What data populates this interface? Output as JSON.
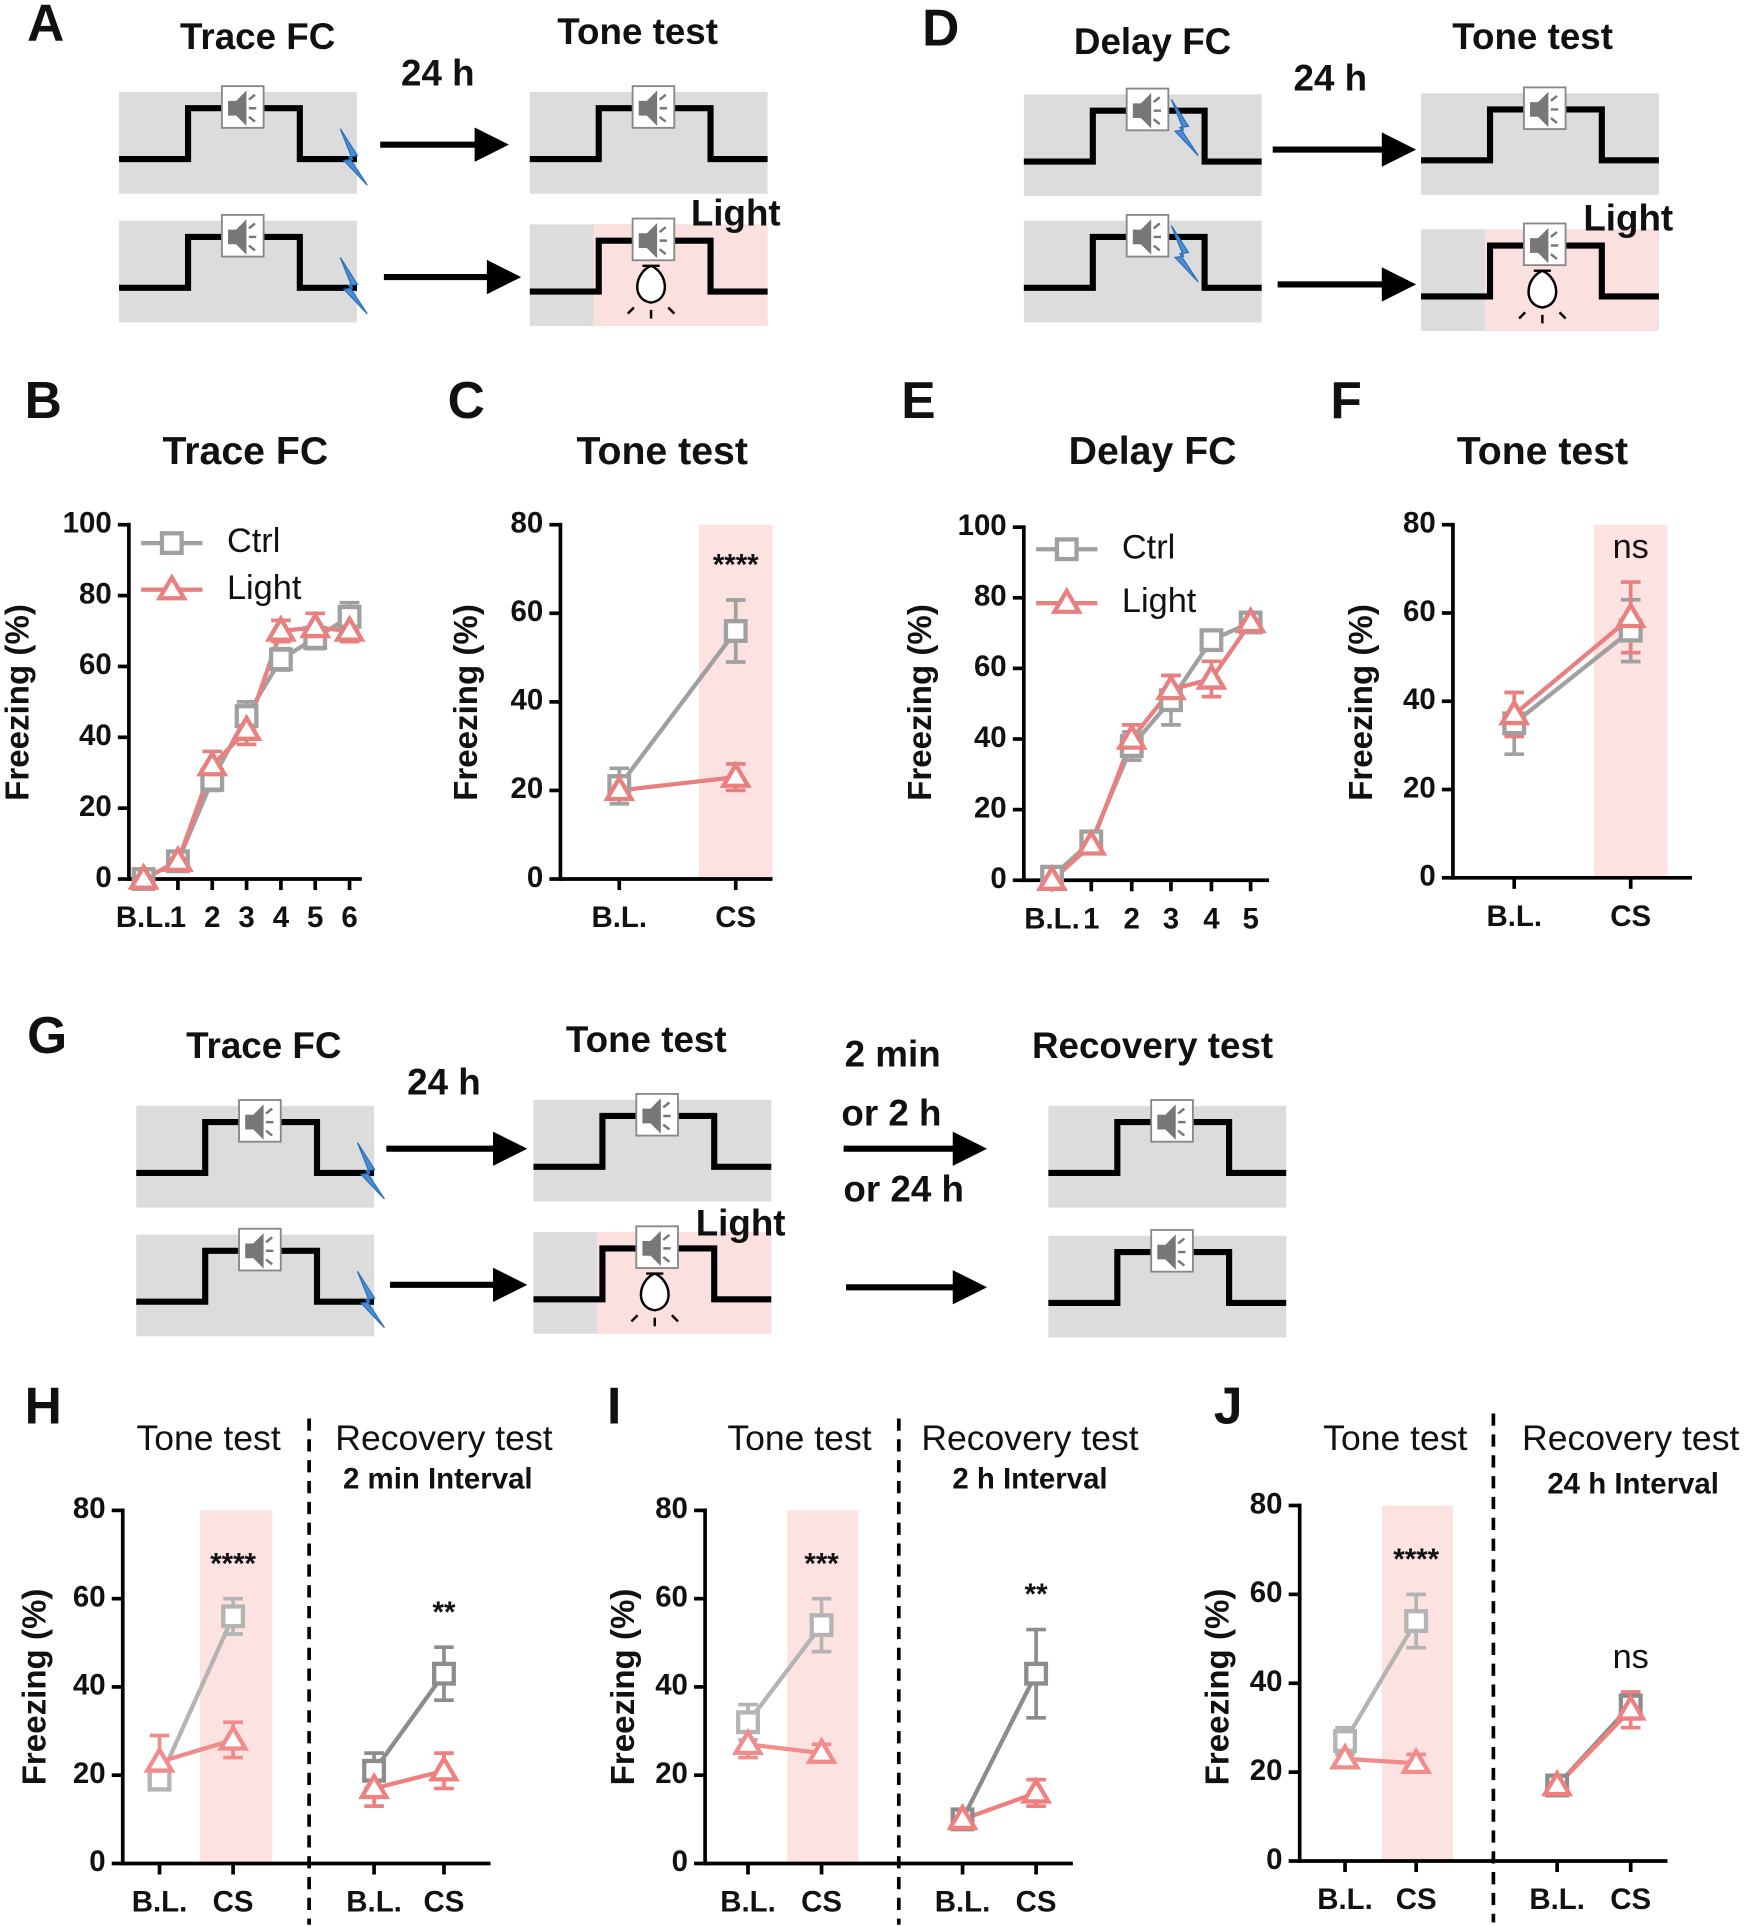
{
  "diagrams": [
    {
      "letter": "A",
      "title": "Trace FC",
      "interval": "24 h",
      "test": "Tone test",
      "light": "Light"
    },
    {
      "letter": "D",
      "title": "Delay FC",
      "interval": "24 h",
      "test": "Tone test",
      "light": "Light"
    },
    {
      "letter": "G",
      "title": "Trace FC",
      "interval": "24 h",
      "test": "Tone test",
      "light": "Light",
      "second_interval": [
        "2 min",
        "or 2 h",
        "or 24 h"
      ],
      "second_test": "Recovery test"
    }
  ],
  "chart_data": [
    {
      "type": "line",
      "panel_label": "B",
      "title": "Trace FC",
      "ylabel": "Freezing (%)",
      "categories": [
        "B.L.",
        "1",
        "2",
        "3",
        "4",
        "5",
        "6"
      ],
      "series": [
        {
          "name": "Ctrl",
          "color": "#a0a0a0",
          "values": [
            0,
            5,
            28,
            46,
            62,
            68,
            74
          ],
          "errors": [
            2,
            2,
            3,
            4,
            3,
            3,
            4
          ]
        },
        {
          "name": "Light",
          "color": "#e88080",
          "values": [
            0,
            5,
            32,
            42,
            70,
            71,
            70
          ],
          "errors": [
            2,
            2,
            4,
            4,
            3,
            4,
            3
          ]
        }
      ],
      "ylim": [
        0,
        100
      ],
      "yticks": [
        0,
        20,
        40,
        60,
        80,
        100
      ],
      "legend": "upper left"
    },
    {
      "type": "line",
      "panel_label": "C",
      "title": "Tone test",
      "ylabel": "Freezing (%)",
      "categories": [
        "B.L.",
        "CS"
      ],
      "series": [
        {
          "name": "Ctrl",
          "color": "#a0a0a0",
          "values": [
            21,
            56
          ],
          "errors": [
            4,
            7
          ]
        },
        {
          "name": "Light",
          "color": "#e88080",
          "values": [
            20,
            23
          ],
          "errors": [
            2,
            3
          ]
        }
      ],
      "ylim": [
        0,
        80
      ],
      "yticks": [
        0,
        20,
        40,
        60,
        80
      ],
      "highlight_index": 1,
      "annotation": "****"
    },
    {
      "type": "line",
      "panel_label": "E",
      "title": "Delay FC",
      "ylabel": "Freezing (%)",
      "categories": [
        "B.L.",
        "1",
        "2",
        "3",
        "4",
        "5"
      ],
      "series": [
        {
          "name": "Ctrl",
          "color": "#a0a0a0",
          "values": [
            1,
            11,
            38,
            51,
            68,
            73
          ],
          "errors": [
            2,
            2,
            4,
            7,
            2,
            2
          ]
        },
        {
          "name": "Light",
          "color": "#e88080",
          "values": [
            0,
            10,
            40,
            54,
            57,
            73
          ],
          "errors": [
            1,
            2,
            4,
            4,
            5,
            2
          ]
        }
      ],
      "ylim": [
        0,
        100
      ],
      "yticks": [
        0,
        20,
        40,
        60,
        80,
        100
      ],
      "legend": "upper left"
    },
    {
      "type": "line",
      "panel_label": "F",
      "title": "Tone test",
      "ylabel": "Freezing (%)",
      "categories": [
        "B.L.",
        "CS"
      ],
      "series": [
        {
          "name": "Ctrl",
          "color": "#a0a0a0",
          "values": [
            35,
            56
          ],
          "errors": [
            7,
            7
          ]
        },
        {
          "name": "Light",
          "color": "#e88080",
          "values": [
            37,
            59
          ],
          "errors": [
            5,
            8
          ]
        }
      ],
      "ylim": [
        0,
        80
      ],
      "yticks": [
        0,
        20,
        40,
        60,
        80
      ],
      "highlight_index": 1,
      "annotation": "ns"
    },
    {
      "type": "line",
      "panel_label": "H",
      "ylabel": "Freezing (%)",
      "ylim": [
        0,
        80
      ],
      "yticks": [
        0,
        20,
        40,
        60,
        80
      ],
      "groups": [
        {
          "title": "Tone test",
          "categories": [
            "B.L.",
            "CS"
          ],
          "highlight_index": 1,
          "annotation": "****",
          "series": [
            {
              "color": "#b4b4b4",
              "values": [
                19,
                56
              ],
              "errors": [
                2,
                4
              ]
            },
            {
              "color": "#f08c8c",
              "values": [
                23,
                28
              ],
              "errors": [
                6,
                4
              ]
            }
          ]
        },
        {
          "title": "Recovery test",
          "subtitle": "2 min Interval",
          "categories": [
            "B.L.",
            "CS"
          ],
          "annotation": "**",
          "series": [
            {
              "color": "#8c8c8c",
              "values": [
                21,
                43
              ],
              "errors": [
                4,
                6
              ]
            },
            {
              "color": "#f08080",
              "values": [
                17,
                21
              ],
              "errors": [
                4,
                4
              ]
            }
          ]
        }
      ]
    },
    {
      "type": "line",
      "panel_label": "I",
      "ylabel": "Freezing (%)",
      "ylim": [
        0,
        80
      ],
      "yticks": [
        0,
        20,
        40,
        60,
        80
      ],
      "groups": [
        {
          "title": "Tone test",
          "categories": [
            "B.L.",
            "CS"
          ],
          "highlight_index": 1,
          "annotation": "***",
          "series": [
            {
              "color": "#b4b4b4",
              "values": [
                32,
                54
              ],
              "errors": [
                4,
                6
              ]
            },
            {
              "color": "#f08c8c",
              "values": [
                27,
                25
              ],
              "errors": [
                3,
                2
              ]
            }
          ]
        },
        {
          "title": "Recovery test",
          "subtitle": "2 h Interval",
          "categories": [
            "B.L.",
            "CS"
          ],
          "annotation": "**",
          "series": [
            {
              "color": "#8c8c8c",
              "values": [
                10,
                43
              ],
              "errors": [
                1,
                10
              ]
            },
            {
              "color": "#f08080",
              "values": [
                10,
                16
              ],
              "errors": [
                1,
                3
              ]
            }
          ]
        }
      ]
    },
    {
      "type": "line",
      "panel_label": "J",
      "ylabel": "Freezing (%)",
      "ylim": [
        0,
        80
      ],
      "yticks": [
        0,
        20,
        40,
        60,
        80
      ],
      "groups": [
        {
          "title": "Tone test",
          "categories": [
            "B.L.",
            "CS"
          ],
          "highlight_index": 1,
          "annotation": "****",
          "series": [
            {
              "color": "#b4b4b4",
              "values": [
                27,
                54
              ],
              "errors": [
                3,
                6
              ]
            },
            {
              "color": "#f08c8c",
              "values": [
                23,
                22
              ],
              "errors": [
                2,
                2
              ]
            }
          ]
        },
        {
          "title": "Recovery test",
          "subtitle": "24 h Interval",
          "categories": [
            "B.L.",
            "CS"
          ],
          "annotation": "ns",
          "series": [
            {
              "color": "#8c8c8c",
              "values": [
                17,
                35
              ],
              "errors": [
                1,
                3
              ]
            },
            {
              "color": "#f08080",
              "values": [
                17,
                34
              ],
              "errors": [
                1,
                4
              ]
            }
          ]
        }
      ]
    }
  ]
}
